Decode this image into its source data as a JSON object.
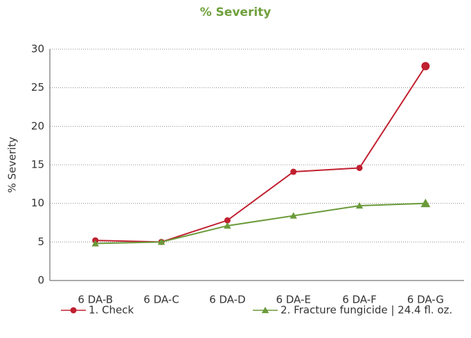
{
  "chart_data": {
    "type": "line",
    "title": "% Severity",
    "y_label": "% Severity",
    "categories": [
      "6 DA-B",
      "6 DA-C",
      "6 DA-D",
      "6 DA-E",
      "6 DA-F",
      "6 DA-G"
    ],
    "series": [
      {
        "name": "1. Check",
        "color": "#c0202f",
        "marker": "circle",
        "values": [
          5.2,
          5.0,
          7.8,
          14.1,
          14.6,
          27.8
        ]
      },
      {
        "name": "2. Fracture fungicide | 24.4 fl. oz.",
        "color": "#6a9a3a",
        "marker": "triangle",
        "values": [
          4.8,
          5.0,
          7.1,
          8.4,
          9.7,
          10.0
        ]
      }
    ],
    "ylim": [
      0,
      30
    ],
    "yticks": [
      0,
      5,
      10,
      15,
      20,
      25,
      30
    ],
    "grid": true,
    "legend": "bottom"
  }
}
